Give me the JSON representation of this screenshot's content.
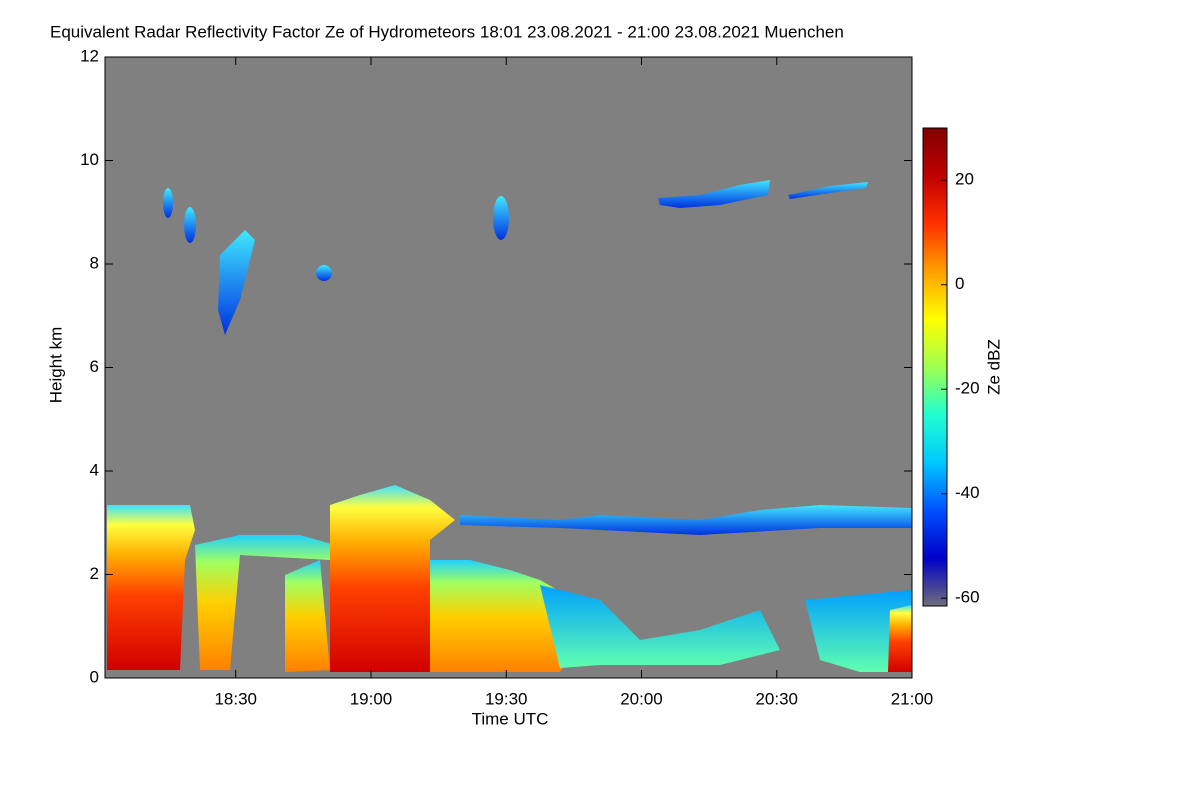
{
  "chart_data": {
    "type": "heatmap",
    "title": "Equivalent Radar Reflectivity Factor Ze of Hydrometeors   18:01 23.08.2021 - 21:00 23.08.2021 Muenchen",
    "x_label": "Time UTC",
    "y_label": "Height km",
    "colorbar_label": "Ze dBZ",
    "xlim": [
      18.0167,
      21.0
    ],
    "xticks": [
      {
        "value": 18.5,
        "label": "18:30"
      },
      {
        "value": 19.0,
        "label": "19:00"
      },
      {
        "value": 19.5,
        "label": "19:30"
      },
      {
        "value": 20.0,
        "label": "20:00"
      },
      {
        "value": 20.5,
        "label": "20:30"
      },
      {
        "value": 21.0,
        "label": "21:00"
      }
    ],
    "ylim": [
      0,
      12
    ],
    "yticks": [
      0,
      2,
      4,
      6,
      8,
      10,
      12
    ],
    "clim": [
      -61.5,
      30
    ],
    "cticks": [
      -60,
      -40,
      -20,
      0,
      20
    ],
    "colormap": [
      "#6e6e7a",
      "#0000c8",
      "#0050ff",
      "#00c8ff",
      "#20ffd0",
      "#a0ff50",
      "#ffff00",
      "#ffa000",
      "#ff3000",
      "#c00000",
      "#800000"
    ],
    "background": "#808080"
  }
}
